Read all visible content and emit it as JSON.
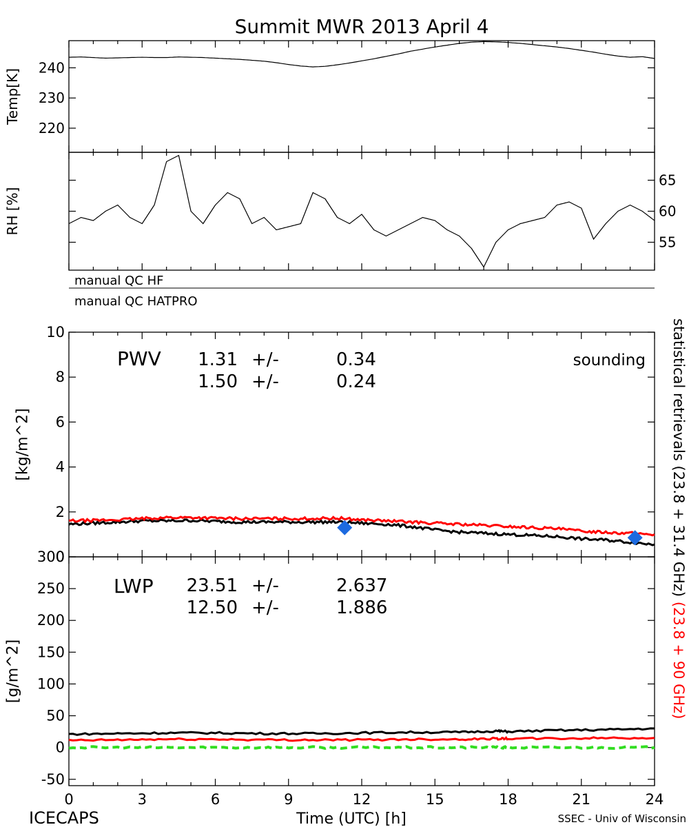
{
  "title": "Summit MWR 2013 April  4",
  "footer": {
    "left": "ICECAPS",
    "center": "Time (UTC) [h]",
    "right": "SSEC - Univ of Wisconsin"
  },
  "colors": {
    "black": "#000000",
    "red": "#ff0000",
    "blue": "#1c6ae0",
    "green": "#33dd22"
  },
  "qc_labels": [
    "manual QC HF",
    "manual QC HATPRO"
  ],
  "right_axis_label": {
    "black": "statistical retrievals (23.8 + 31.4 GHz)",
    "red": "(23.8 + 90 GHz)"
  },
  "chart_data": [
    {
      "id": "temp",
      "type": "line",
      "ylabel": "Temp[K]",
      "ylim": [
        212,
        249
      ],
      "yticks": [
        220,
        230,
        240
      ],
      "x": [
        0,
        0.5,
        1,
        1.5,
        2,
        2.5,
        3,
        3.5,
        4,
        4.5,
        5,
        5.5,
        6,
        6.5,
        7,
        7.5,
        8,
        8.5,
        9,
        9.5,
        10,
        10.5,
        11,
        11.5,
        12,
        12.5,
        13,
        13.5,
        14,
        14.5,
        15,
        15.5,
        16,
        16.5,
        17,
        17.5,
        18,
        18.5,
        19,
        19.5,
        20,
        20.5,
        21,
        21.5,
        22,
        22.5,
        23,
        23.5,
        24
      ],
      "series": [
        {
          "color": "black",
          "values": [
            243.5,
            243.6,
            243.4,
            243.2,
            243.3,
            243.4,
            243.5,
            243.4,
            243.4,
            243.6,
            243.5,
            243.4,
            243.2,
            243.0,
            242.8,
            242.5,
            242.2,
            241.7,
            241.1,
            240.6,
            240.3,
            240.5,
            241.0,
            241.6,
            242.3,
            243.0,
            243.8,
            244.6,
            245.5,
            246.2,
            246.9,
            247.5,
            248.1,
            248.5,
            248.7,
            248.6,
            248.4,
            248.1,
            247.7,
            247.3,
            246.9,
            246.4,
            245.8,
            245.2,
            244.5,
            243.9,
            243.5,
            243.7,
            243.1
          ]
        }
      ]
    },
    {
      "id": "rh",
      "type": "line",
      "ylabel": "RH [%]",
      "ylim": [
        50.5,
        69.5
      ],
      "yticks": [
        55,
        60,
        65
      ],
      "x": [
        0,
        0.5,
        1,
        1.5,
        2,
        2.5,
        3,
        3.5,
        4,
        4.5,
        5,
        5.5,
        6,
        6.5,
        7,
        7.5,
        8,
        8.5,
        9,
        9.5,
        10,
        10.5,
        11,
        11.5,
        12,
        12.5,
        13,
        13.5,
        14,
        14.5,
        15,
        15.5,
        16,
        16.5,
        17,
        17.5,
        18,
        18.5,
        19,
        19.5,
        20,
        20.5,
        21,
        21.5,
        22,
        22.5,
        23,
        23.5,
        24
      ],
      "series": [
        {
          "color": "black",
          "values": [
            58,
            59,
            58.5,
            60,
            61,
            59,
            58,
            61,
            68,
            69,
            60,
            58,
            61,
            63,
            62,
            58,
            59,
            57,
            57.5,
            58,
            63,
            62,
            59,
            58,
            59.5,
            57,
            56,
            57,
            58,
            59,
            58.5,
            57,
            56,
            54,
            51,
            55,
            57,
            58,
            58.5,
            59,
            61,
            61.5,
            60.5,
            55.5,
            58,
            60,
            61,
            60,
            58.5
          ]
        }
      ]
    },
    {
      "id": "pwv",
      "type": "line",
      "title": "PWV",
      "ylabel": "[kg/m^2]",
      "ylim": [
        0,
        10
      ],
      "yticks": [
        0,
        2,
        4,
        6,
        8,
        10
      ],
      "stats": [
        {
          "color": "black",
          "mean": "1.31",
          "pm": "+/-",
          "std": "0.34"
        },
        {
          "color": "red",
          "mean": "1.50",
          "pm": "+/-",
          "std": "0.24"
        }
      ],
      "legend": {
        "label": "sounding",
        "color": "blue"
      },
      "x": [
        0,
        1,
        2,
        3,
        4,
        5,
        6,
        7,
        8,
        9,
        10,
        11,
        12,
        13,
        14,
        15,
        16,
        17,
        18,
        19,
        20,
        21,
        22,
        23,
        24
      ],
      "series": [
        {
          "color": "black",
          "values": [
            1.45,
            1.5,
            1.55,
            1.6,
            1.6,
            1.62,
            1.58,
            1.55,
            1.55,
            1.55,
            1.55,
            1.55,
            1.5,
            1.45,
            1.35,
            1.2,
            1.1,
            1.05,
            1.0,
            0.95,
            0.9,
            0.8,
            0.75,
            0.65,
            0.55
          ]
        },
        {
          "color": "red",
          "values": [
            1.6,
            1.62,
            1.65,
            1.7,
            1.75,
            1.75,
            1.72,
            1.7,
            1.7,
            1.7,
            1.7,
            1.72,
            1.65,
            1.6,
            1.55,
            1.5,
            1.45,
            1.4,
            1.35,
            1.3,
            1.25,
            1.15,
            1.1,
            1.05,
            1.0
          ]
        }
      ],
      "soundings": [
        {
          "x": 11.3,
          "y": 1.3
        },
        {
          "x": 23.2,
          "y": 0.85
        }
      ]
    },
    {
      "id": "lwp",
      "type": "line",
      "title": "LWP",
      "ylabel": "[g/m^2]",
      "xlabel": "Time (UTC) [h]",
      "xlim": [
        0,
        24
      ],
      "xticks": [
        0,
        3,
        6,
        9,
        12,
        15,
        18,
        21,
        24
      ],
      "ylim": [
        -60,
        300
      ],
      "yticks": [
        -50,
        0,
        50,
        100,
        150,
        200,
        250,
        300
      ],
      "stats": [
        {
          "color": "black",
          "mean": "23.51",
          "pm": "+/-",
          "std": "2.637"
        },
        {
          "color": "red",
          "mean": "12.50",
          "pm": "+/-",
          "std": "1.886"
        }
      ],
      "x": [
        0,
        2,
        4,
        6,
        8,
        10,
        12,
        14,
        16,
        17.5,
        18,
        20,
        22,
        24
      ],
      "series": [
        {
          "color": "black",
          "values": [
            21,
            22,
            23,
            23,
            22,
            22,
            23,
            24,
            24,
            26,
            25,
            27,
            28,
            30
          ]
        },
        {
          "color": "red",
          "values": [
            11,
            12,
            13,
            13,
            12,
            12,
            12,
            13,
            13,
            14,
            14,
            14,
            15,
            15
          ]
        },
        {
          "color": "green",
          "dashed": true,
          "values": [
            0,
            0,
            0,
            0,
            0,
            0,
            0,
            0,
            0,
            0,
            0,
            0,
            0,
            0
          ]
        }
      ]
    }
  ]
}
